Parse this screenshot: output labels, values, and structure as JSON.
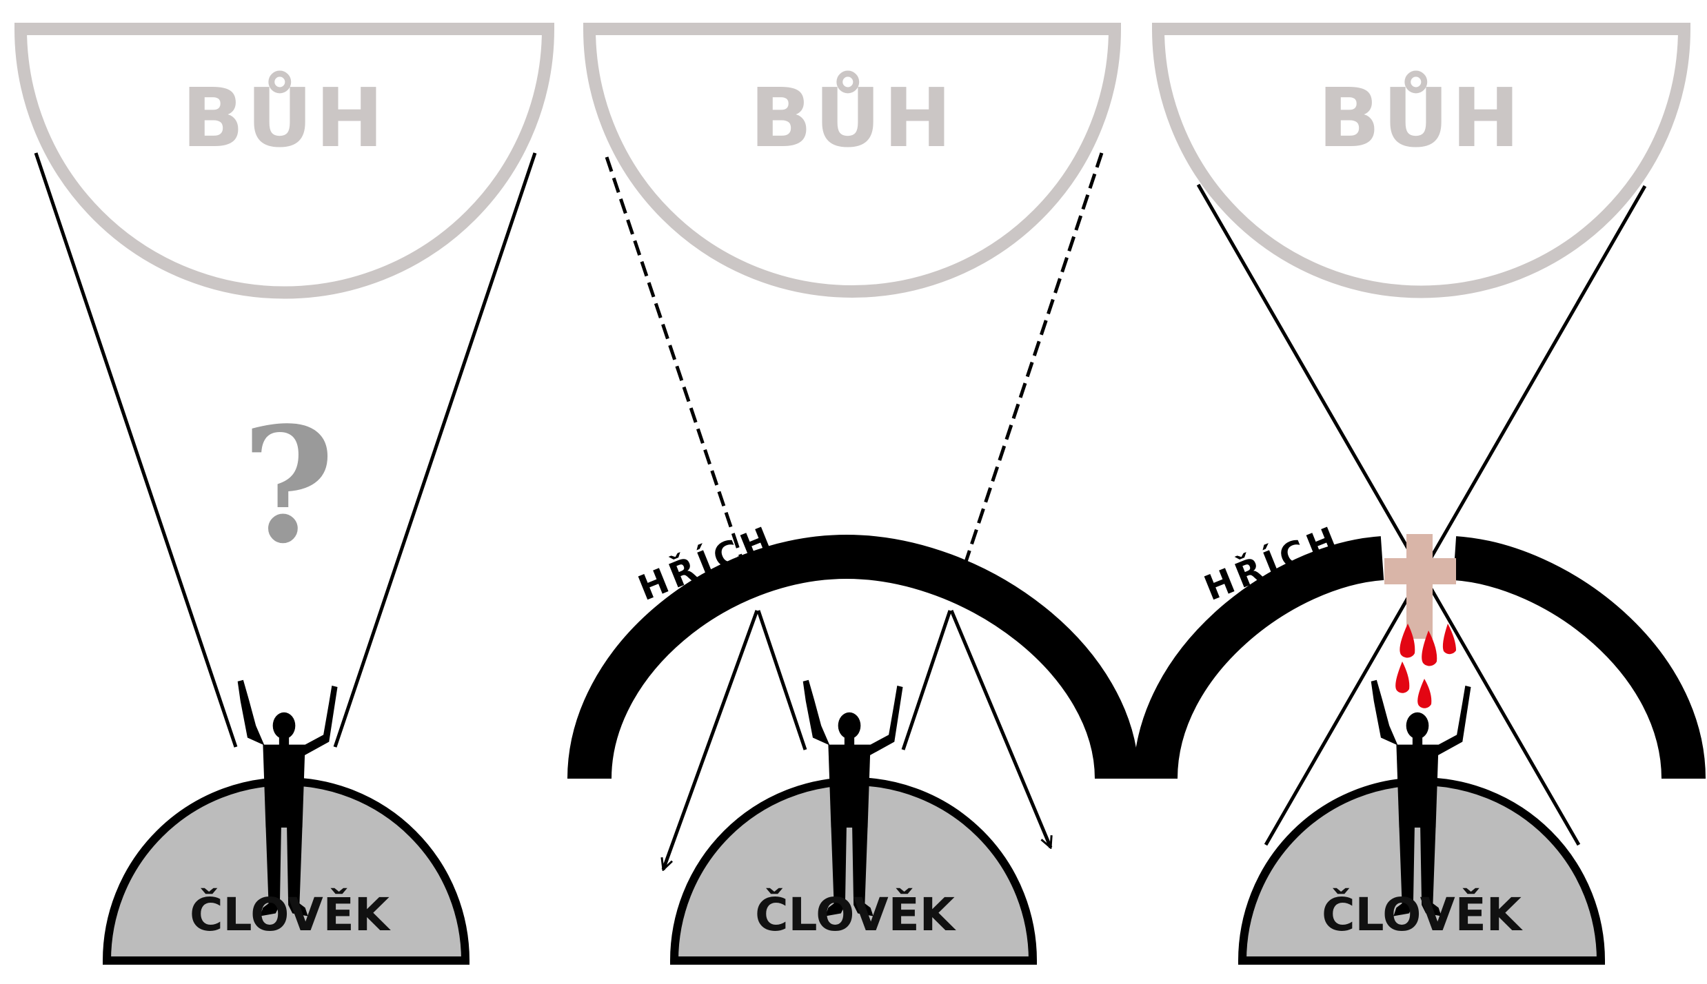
{
  "panels": [
    {
      "god_label": "BŮH",
      "man_label": "ČLOVĚK",
      "question_mark": "?"
    },
    {
      "god_label": "BŮH",
      "man_label": "ČLOVĚK",
      "sin_label": "HŘÍCH"
    },
    {
      "god_label": "BŮH",
      "man_label": "ČLOVĚK",
      "sin_label": "HŘÍCH"
    }
  ],
  "colors": {
    "god_outline": "#cbc6c5",
    "man_fill": "#bcbcbc",
    "sin_arc": "#000000",
    "cross": "#d9b5a8",
    "blood": "#e30613",
    "question_mark": "#9a9a9a"
  }
}
